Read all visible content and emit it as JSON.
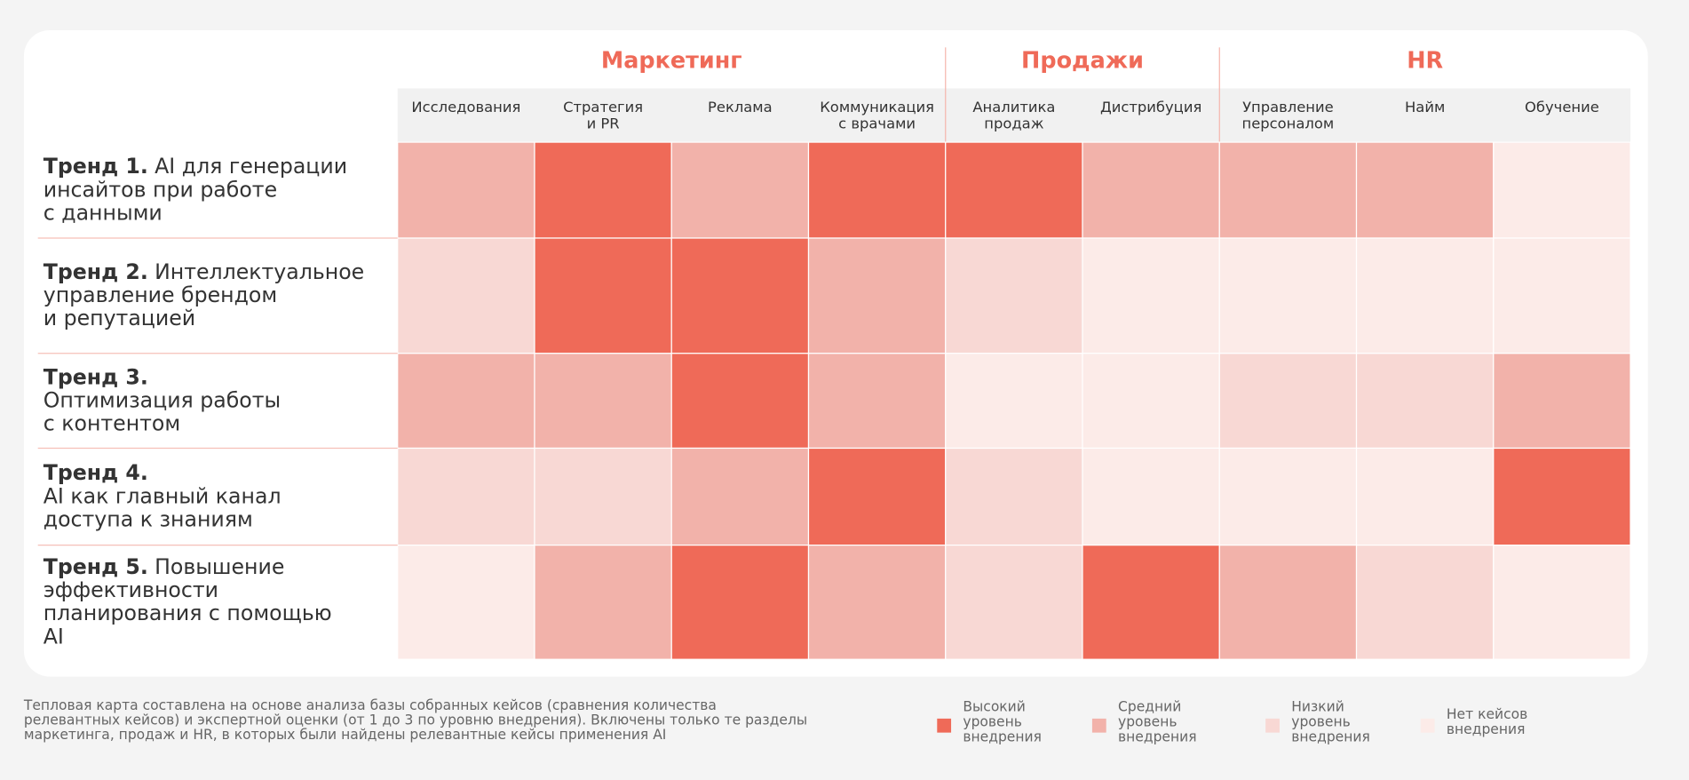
{
  "chart_data": {
    "type": "heatmap",
    "groups": [
      {
        "name": "Маркетинг",
        "span": [
          0,
          3
        ]
      },
      {
        "name": "Продажи",
        "span": [
          4,
          5
        ]
      },
      {
        "name": "HR",
        "span": [
          6,
          8
        ]
      }
    ],
    "columns": [
      [
        "Исследования"
      ],
      [
        "Стратегия",
        "и PR"
      ],
      [
        "Реклама"
      ],
      [
        "Коммуникация",
        "с врачами"
      ],
      [
        "Аналитика",
        "продаж"
      ],
      [
        "Дистрибуция"
      ],
      [
        "Управление",
        "персоналом"
      ],
      [
        "Найм"
      ],
      [
        "Обучение"
      ]
    ],
    "rows": [
      {
        "trend": "Тренд 1.",
        "inline": true,
        "lines": [
          "AI для генерации",
          "инсайтов при работе",
          "с данными"
        ]
      },
      {
        "trend": "Тренд 2.",
        "inline": true,
        "lines": [
          "Интеллектуальное",
          "управление брендом",
          "и репутацией"
        ]
      },
      {
        "trend": "Тренд 3.",
        "inline": false,
        "lines": [
          "Оптимизация работы",
          "с контентом"
        ]
      },
      {
        "trend": "Тренд 4.",
        "inline": false,
        "lines": [
          "AI как главный канал",
          "доступа к знаниям"
        ]
      },
      {
        "trend": "Тренд 5.",
        "inline": true,
        "lines": [
          "Повышение",
          "эффективности",
          "планирования с помощью",
          "AI"
        ]
      }
    ],
    "values": [
      [
        2,
        3,
        2,
        3,
        3,
        2,
        2,
        2,
        0
      ],
      [
        1,
        3,
        3,
        2,
        1,
        0,
        0,
        0,
        0
      ],
      [
        2,
        2,
        3,
        2,
        0,
        0,
        1,
        1,
        2
      ],
      [
        1,
        1,
        2,
        3,
        1,
        0,
        0,
        0,
        3
      ],
      [
        0,
        2,
        3,
        2,
        1,
        3,
        2,
        1,
        0
      ]
    ],
    "levels": [
      {
        "value": 3,
        "color": "#ef6a58",
        "label": [
          "Высокий",
          "уровень",
          "внедрения"
        ]
      },
      {
        "value": 2,
        "color": "#f2b2aa",
        "label": [
          "Средний",
          "уровень",
          "внедрения"
        ]
      },
      {
        "value": 1,
        "color": "#f8d8d4",
        "label": [
          "Низкий",
          "уровень",
          "внедрения"
        ]
      },
      {
        "value": 0,
        "color": "#fcebe8",
        "label": [
          "Нет кейсов",
          "внедрения"
        ]
      }
    ],
    "note": [
      "Тепловая карта составлена на основе анализа базы собранных кейсов (сравнения количества",
      "релевантных кейсов) и экспертной оценки (от 1 до 3 по уровню внедрения). Включены только те разделы",
      "маркетинга, продаж и HR, в которых были найдены релевантные кейсы применения AI"
    ]
  }
}
